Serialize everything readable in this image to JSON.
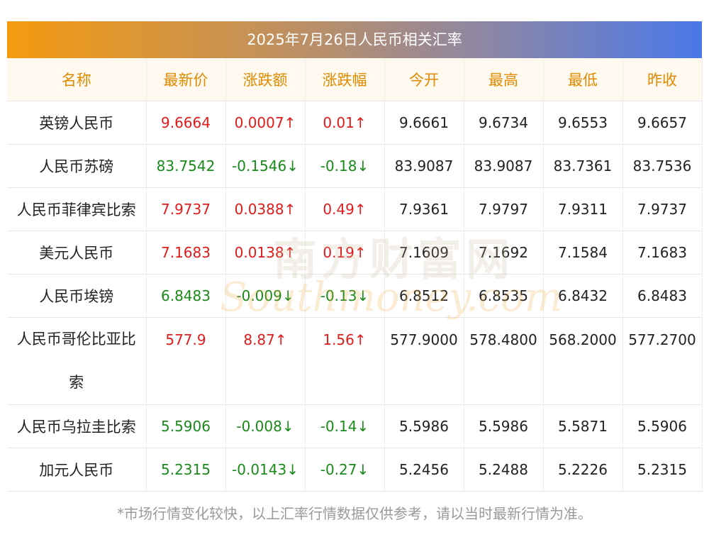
{
  "title": "2025年7月26日人民币相关汇率",
  "headers": [
    "名称",
    "最新价",
    "涨跌额",
    "涨跌幅",
    "今开",
    "最高",
    "最低",
    "昨收"
  ],
  "rows": [
    {
      "name": "英镑人民币",
      "latest": "9.6664",
      "change": "0.0007↑",
      "pct": "0.01↑",
      "open": "9.6661",
      "high": "9.6734",
      "low": "9.6553",
      "prev": "9.6657",
      "dir": "up"
    },
    {
      "name": "人民币苏磅",
      "latest": "83.7542",
      "change": "-0.1546↓",
      "pct": "-0.18↓",
      "open": "83.9087",
      "high": "83.9087",
      "low": "83.7361",
      "prev": "83.7536",
      "dir": "down"
    },
    {
      "name": "人民币菲律宾比索",
      "latest": "7.9737",
      "change": "0.0388↑",
      "pct": "0.49↑",
      "open": "7.9361",
      "high": "7.9797",
      "low": "7.9311",
      "prev": "7.9737",
      "dir": "up"
    },
    {
      "name": "美元人民币",
      "latest": "7.1683",
      "change": "0.0138↑",
      "pct": "0.19↑",
      "open": "7.1609",
      "high": "7.1692",
      "low": "7.1584",
      "prev": "7.1683",
      "dir": "up"
    },
    {
      "name": "人民币埃镑",
      "latest": "6.8483",
      "change": "-0.009↓",
      "pct": "-0.13↓",
      "open": "6.8512",
      "high": "6.8535",
      "low": "6.8432",
      "prev": "6.8483",
      "dir": "down"
    },
    {
      "name": "人民币哥伦比亚比索",
      "latest": "577.9",
      "change": "8.87↑",
      "pct": "1.56↑",
      "open": "577.9000",
      "high": "578.4800",
      "low": "568.2000",
      "prev": "577.2700",
      "dir": "up"
    },
    {
      "name": "人民币乌拉圭比索",
      "latest": "5.5906",
      "change": "-0.008↓",
      "pct": "-0.14↓",
      "open": "5.5986",
      "high": "5.5986",
      "low": "5.5871",
      "prev": "5.5906",
      "dir": "down"
    },
    {
      "name": "加元人民币",
      "latest": "5.2315",
      "change": "-0.0143↓",
      "pct": "-0.27↓",
      "open": "5.2456",
      "high": "5.2488",
      "low": "5.2226",
      "prev": "5.2315",
      "dir": "down"
    }
  ],
  "watermark": {
    "top": "南方财富网",
    "bottom": "Southmoney.com"
  },
  "footnote": "*市场行情变化较快，以上汇率行情数据仅供参考，请以当时最新行情为准。",
  "colors": {
    "up": "#e01b1b",
    "down": "#1a8a1a",
    "header_text": "#e08a00"
  }
}
